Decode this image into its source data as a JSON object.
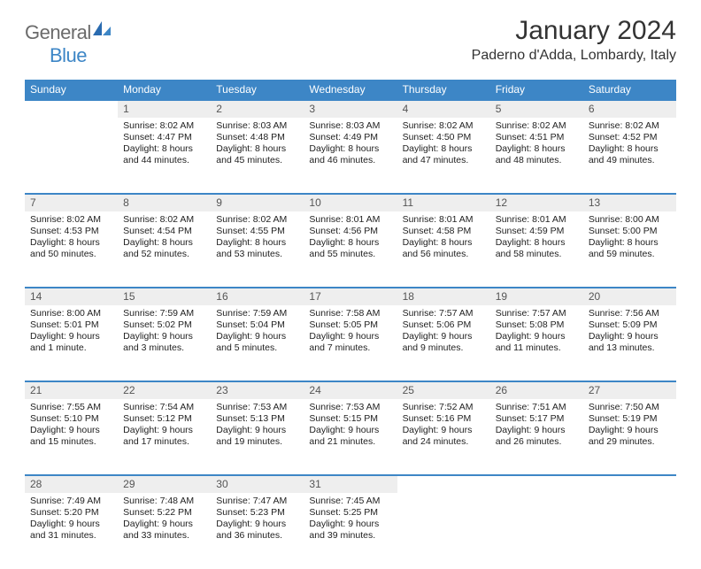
{
  "logo": {
    "text1": "General",
    "text2": "Blue"
  },
  "title": "January 2024",
  "location": "Paderno d'Adda, Lombardy, Italy",
  "colors": {
    "header_bg": "#3d86c6",
    "header_text": "#ffffff",
    "daynum_bg": "#eeeeee",
    "border": "#3d86c6",
    "text": "#222222"
  },
  "weekdays": [
    "Sunday",
    "Monday",
    "Tuesday",
    "Wednesday",
    "Thursday",
    "Friday",
    "Saturday"
  ],
  "first_weekday_index": 1,
  "days": [
    {
      "n": 1,
      "sunrise": "8:02 AM",
      "sunset": "4:47 PM",
      "daylight": "8 hours and 44 minutes."
    },
    {
      "n": 2,
      "sunrise": "8:03 AM",
      "sunset": "4:48 PM",
      "daylight": "8 hours and 45 minutes."
    },
    {
      "n": 3,
      "sunrise": "8:03 AM",
      "sunset": "4:49 PM",
      "daylight": "8 hours and 46 minutes."
    },
    {
      "n": 4,
      "sunrise": "8:02 AM",
      "sunset": "4:50 PM",
      "daylight": "8 hours and 47 minutes."
    },
    {
      "n": 5,
      "sunrise": "8:02 AM",
      "sunset": "4:51 PM",
      "daylight": "8 hours and 48 minutes."
    },
    {
      "n": 6,
      "sunrise": "8:02 AM",
      "sunset": "4:52 PM",
      "daylight": "8 hours and 49 minutes."
    },
    {
      "n": 7,
      "sunrise": "8:02 AM",
      "sunset": "4:53 PM",
      "daylight": "8 hours and 50 minutes."
    },
    {
      "n": 8,
      "sunrise": "8:02 AM",
      "sunset": "4:54 PM",
      "daylight": "8 hours and 52 minutes."
    },
    {
      "n": 9,
      "sunrise": "8:02 AM",
      "sunset": "4:55 PM",
      "daylight": "8 hours and 53 minutes."
    },
    {
      "n": 10,
      "sunrise": "8:01 AM",
      "sunset": "4:56 PM",
      "daylight": "8 hours and 55 minutes."
    },
    {
      "n": 11,
      "sunrise": "8:01 AM",
      "sunset": "4:58 PM",
      "daylight": "8 hours and 56 minutes."
    },
    {
      "n": 12,
      "sunrise": "8:01 AM",
      "sunset": "4:59 PM",
      "daylight": "8 hours and 58 minutes."
    },
    {
      "n": 13,
      "sunrise": "8:00 AM",
      "sunset": "5:00 PM",
      "daylight": "8 hours and 59 minutes."
    },
    {
      "n": 14,
      "sunrise": "8:00 AM",
      "sunset": "5:01 PM",
      "daylight": "9 hours and 1 minute."
    },
    {
      "n": 15,
      "sunrise": "7:59 AM",
      "sunset": "5:02 PM",
      "daylight": "9 hours and 3 minutes."
    },
    {
      "n": 16,
      "sunrise": "7:59 AM",
      "sunset": "5:04 PM",
      "daylight": "9 hours and 5 minutes."
    },
    {
      "n": 17,
      "sunrise": "7:58 AM",
      "sunset": "5:05 PM",
      "daylight": "9 hours and 7 minutes."
    },
    {
      "n": 18,
      "sunrise": "7:57 AM",
      "sunset": "5:06 PM",
      "daylight": "9 hours and 9 minutes."
    },
    {
      "n": 19,
      "sunrise": "7:57 AM",
      "sunset": "5:08 PM",
      "daylight": "9 hours and 11 minutes."
    },
    {
      "n": 20,
      "sunrise": "7:56 AM",
      "sunset": "5:09 PM",
      "daylight": "9 hours and 13 minutes."
    },
    {
      "n": 21,
      "sunrise": "7:55 AM",
      "sunset": "5:10 PM",
      "daylight": "9 hours and 15 minutes."
    },
    {
      "n": 22,
      "sunrise": "7:54 AM",
      "sunset": "5:12 PM",
      "daylight": "9 hours and 17 minutes."
    },
    {
      "n": 23,
      "sunrise": "7:53 AM",
      "sunset": "5:13 PM",
      "daylight": "9 hours and 19 minutes."
    },
    {
      "n": 24,
      "sunrise": "7:53 AM",
      "sunset": "5:15 PM",
      "daylight": "9 hours and 21 minutes."
    },
    {
      "n": 25,
      "sunrise": "7:52 AM",
      "sunset": "5:16 PM",
      "daylight": "9 hours and 24 minutes."
    },
    {
      "n": 26,
      "sunrise": "7:51 AM",
      "sunset": "5:17 PM",
      "daylight": "9 hours and 26 minutes."
    },
    {
      "n": 27,
      "sunrise": "7:50 AM",
      "sunset": "5:19 PM",
      "daylight": "9 hours and 29 minutes."
    },
    {
      "n": 28,
      "sunrise": "7:49 AM",
      "sunset": "5:20 PM",
      "daylight": "9 hours and 31 minutes."
    },
    {
      "n": 29,
      "sunrise": "7:48 AM",
      "sunset": "5:22 PM",
      "daylight": "9 hours and 33 minutes."
    },
    {
      "n": 30,
      "sunrise": "7:47 AM",
      "sunset": "5:23 PM",
      "daylight": "9 hours and 36 minutes."
    },
    {
      "n": 31,
      "sunrise": "7:45 AM",
      "sunset": "5:25 PM",
      "daylight": "9 hours and 39 minutes."
    }
  ],
  "labels": {
    "sunrise": "Sunrise:",
    "sunset": "Sunset:",
    "daylight": "Daylight:"
  }
}
